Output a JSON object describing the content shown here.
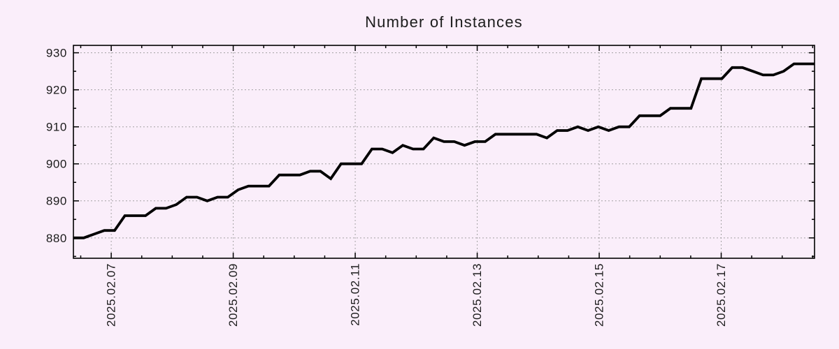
{
  "page": {
    "background_color": "#faeefa"
  },
  "chart_data": {
    "type": "line",
    "title": "Number of Instances",
    "xlabel": "",
    "ylabel": "",
    "legend": "none",
    "grid": "dotted",
    "x_axis": {
      "tick_labels": [
        "2025.02.07",
        "2025.02.09",
        "2025.02.11",
        "2025.02.13",
        "2025.02.15",
        "2025.02.17"
      ],
      "tick_days": [
        0,
        2,
        4,
        6,
        8,
        10
      ],
      "minor_tick_step_days": 0.5,
      "range_days": [
        -0.62,
        11.53
      ],
      "label_rotation_deg": -90
    },
    "y_axis": {
      "ticks": [
        880,
        890,
        900,
        910,
        920,
        930
      ],
      "tick_labels": [
        "880",
        "890",
        "900",
        "910",
        "920",
        "930"
      ],
      "minor_tick_step": 5,
      "range": [
        874.5,
        932
      ]
    },
    "series": [
      {
        "name": "instances",
        "color": "#000000",
        "start_day": -0.62,
        "end_day": 11.53,
        "values": [
          880,
          880,
          881,
          882,
          882,
          886,
          886,
          886,
          888,
          888,
          889,
          891,
          891,
          890,
          891,
          891,
          893,
          894,
          894,
          894,
          897,
          897,
          897,
          898,
          898,
          896,
          900,
          900,
          900,
          904,
          904,
          903,
          905,
          904,
          904,
          907,
          906,
          906,
          905,
          906,
          906,
          908,
          908,
          908,
          908,
          908,
          907,
          909,
          909,
          910,
          909,
          910,
          909,
          910,
          910,
          913,
          913,
          913,
          915,
          915,
          915,
          923,
          923,
          923,
          926,
          926,
          925,
          924,
          924,
          925,
          927,
          927,
          927
        ]
      }
    ],
    "colors": {
      "background": "#faeefa",
      "grid": "#999999",
      "axis_border": "#000000",
      "text": "#1c1c1c"
    }
  }
}
